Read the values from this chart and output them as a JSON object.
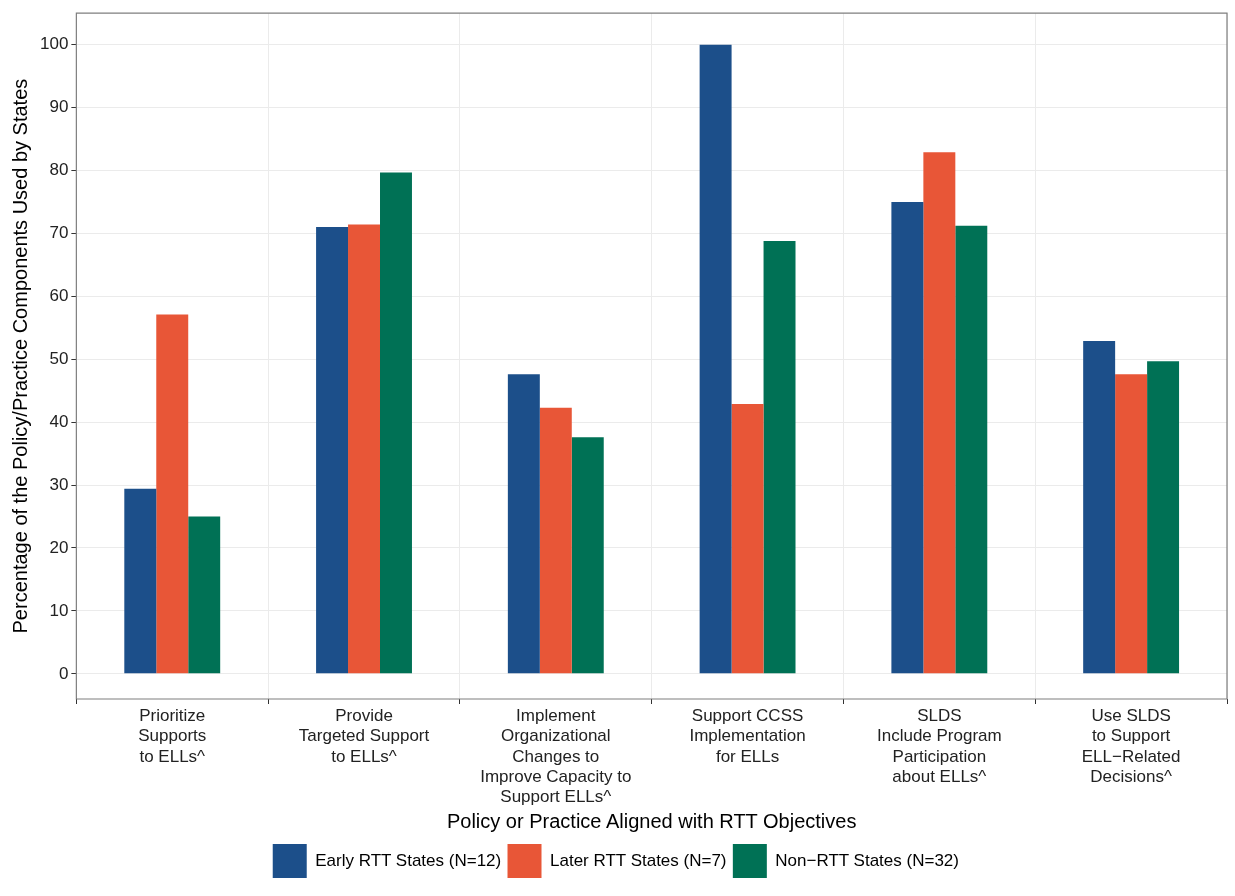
{
  "chart_data": {
    "type": "bar",
    "xlabel": "Policy or Practice Aligned with RTT Objectives",
    "ylabel": "Percentage of the Policy/Practice Components Used by States",
    "categories": [
      "Prioritize\nSupports\nto ELLs^",
      "Provide\nTargeted Support\nto ELLs^",
      "Implement\nOrganizational\nChanges to\nImprove Capacity to\nSupport ELLs^",
      "Support CCSS\nImplementation\nfor ELLs",
      "SLDS\nInclude Program\nParticipation\nabout ELLs^",
      "Use SLDS\nto Support\nELL−Related\nDecisions^"
    ],
    "series": [
      {
        "name": "Early RTT States (N=12)",
        "color": "#1c4f8a",
        "values": [
          29.4,
          71,
          47.6,
          100,
          75,
          52.9
        ]
      },
      {
        "name": "Later RTT States (N=7)",
        "color": "#e85637",
        "values": [
          57.1,
          71.4,
          42.3,
          42.9,
          82.9,
          47.6
        ]
      },
      {
        "name": "Non−RTT States (N=32)",
        "color": "#007155",
        "values": [
          25,
          79.7,
          37.6,
          68.8,
          71.2,
          49.7
        ]
      }
    ],
    "ylim": [
      -4,
      105
    ],
    "yticks": [
      0,
      10,
      20,
      30,
      40,
      50,
      60,
      70,
      80,
      90,
      100
    ],
    "grid": true,
    "legend": "bottom"
  }
}
